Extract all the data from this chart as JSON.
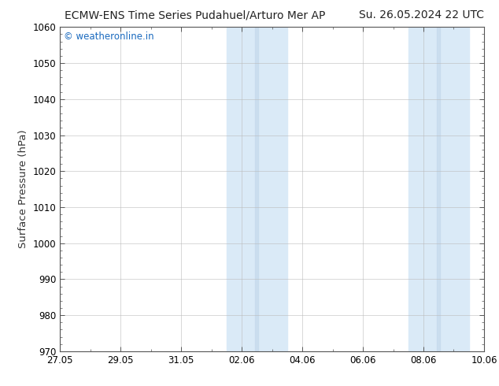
{
  "title_left": "ECMW-ENS Time Series Pudahuel/Arturo Mer AP",
  "title_right": "Su. 26.05.2024 22 UTC",
  "ylabel": "Surface Pressure (hPa)",
  "ylim": [
    970,
    1060
  ],
  "yticks": [
    970,
    980,
    990,
    1000,
    1010,
    1020,
    1030,
    1040,
    1050,
    1060
  ],
  "xtick_labels": [
    "27.05",
    "29.05",
    "31.05",
    "02.06",
    "04.06",
    "06.06",
    "08.06",
    "10.06"
  ],
  "xtick_positions": [
    0,
    2,
    4,
    6,
    8,
    10,
    12,
    14
  ],
  "shaded_bands": [
    {
      "x_start": 5.5,
      "x_end": 6.5,
      "inner_start": 5.9,
      "inner_end": 6.1
    },
    {
      "x_start": 11.5,
      "x_end": 12.5,
      "inner_start": 11.9,
      "inner_end": 12.1
    }
  ],
  "shade_color": "#daeaf7",
  "shade_inner_color": "#c8dff0",
  "watermark_text": "© weatheronline.in",
  "watermark_color": "#1a6abf",
  "background_color": "#ffffff",
  "axes_color": "#555555",
  "title_fontsize": 10,
  "label_fontsize": 9.5,
  "tick_fontsize": 8.5
}
